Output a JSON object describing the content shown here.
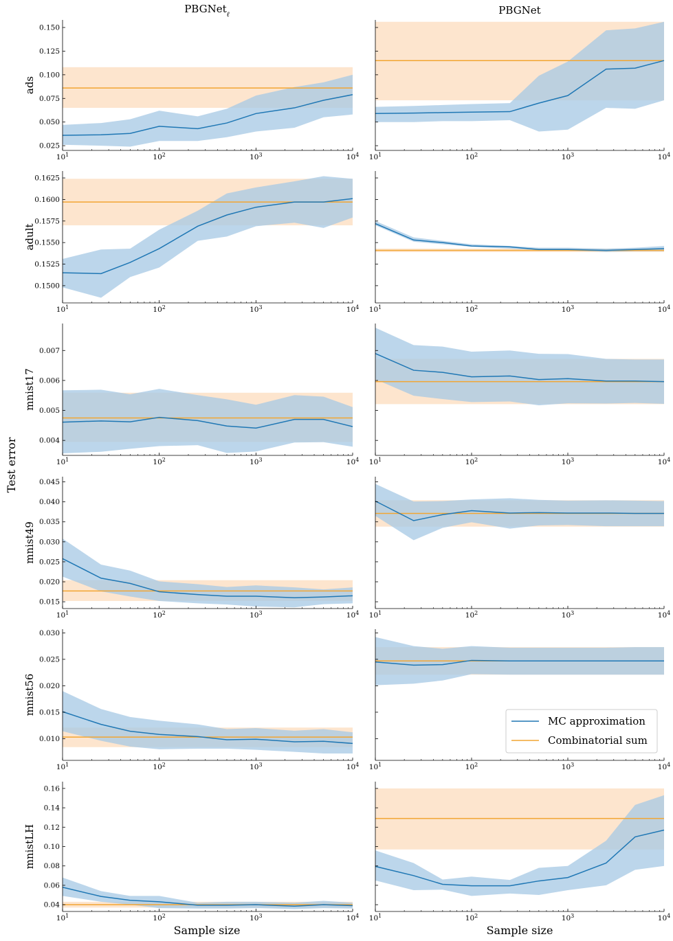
{
  "column_titles": [
    "PBGNetℓ",
    "PBGNet"
  ],
  "xlabel": "Sample size",
  "ylabel": "Test error",
  "legend": {
    "mc_label": "MC approximation",
    "comb_label": "Combinatorial sum",
    "placement": "lower-right (mnist56, PBGNet)"
  },
  "colors": {
    "mc_line": "#1f77b4",
    "mc_band": "#a6c8e4",
    "comb_line": "#f2a531",
    "comb_band": "#fde0c5"
  },
  "x_ticks": [
    "10^1",
    "10^2",
    "10^3",
    "10^4"
  ],
  "chart_data": {
    "type": "line",
    "x_scale": "log",
    "x": [
      10,
      25,
      50,
      100,
      250,
      500,
      1000,
      2500,
      5000,
      10000
    ],
    "xlim": [
      10,
      10000
    ],
    "rows": [
      {
        "dataset": "ads",
        "yticks": [
          "0.025",
          "0.050",
          "0.075",
          "0.100",
          "0.125",
          "0.150"
        ],
        "ylim": [
          0.02,
          0.158
        ],
        "panels": [
          {
            "column": "PBGNetℓ",
            "mc": [
              0.036,
              0.0365,
              0.038,
              0.0455,
              0.043,
              0.049,
              0.059,
              0.065,
              0.073,
              0.079
            ],
            "mc_low": [
              0.026,
              0.025,
              0.024,
              0.03,
              0.03,
              0.034,
              0.04,
              0.044,
              0.055,
              0.058
            ],
            "mc_high": [
              0.047,
              0.049,
              0.053,
              0.062,
              0.056,
              0.064,
              0.078,
              0.087,
              0.092,
              0.1
            ],
            "comb": 0.086,
            "comb_low": 0.065,
            "comb_high": 0.108
          },
          {
            "column": "PBGNet",
            "mc": [
              0.059,
              0.0595,
              0.06,
              0.0605,
              0.061,
              0.07,
              0.078,
              0.106,
              0.107,
              0.115
            ],
            "mc_low": [
              0.05,
              0.05,
              0.051,
              0.051,
              0.052,
              0.04,
              0.042,
              0.065,
              0.064,
              0.073
            ],
            "mc_high": [
              0.066,
              0.067,
              0.068,
              0.069,
              0.07,
              0.099,
              0.114,
              0.147,
              0.149,
              0.156
            ],
            "comb": 0.115,
            "comb_low": 0.073,
            "comb_high": 0.156
          }
        ]
      },
      {
        "dataset": "adult",
        "yticks": [
          "0.1500",
          "0.1525",
          "0.1550",
          "0.1575",
          "0.1600",
          "0.1625"
        ],
        "ylim": [
          0.148,
          0.1633
        ],
        "panels": [
          {
            "column": "PBGNetℓ",
            "mc": [
              0.1515,
              0.1514,
              0.1527,
              0.1543,
              0.1569,
              0.1582,
              0.1591,
              0.1597,
              0.1597,
              0.1601
            ],
            "mc_low": [
              0.1498,
              0.1486,
              0.151,
              0.1521,
              0.1552,
              0.1557,
              0.1569,
              0.1573,
              0.1567,
              0.1579
            ],
            "mc_high": [
              0.1531,
              0.1542,
              0.1543,
              0.1565,
              0.1587,
              0.1607,
              0.1614,
              0.1621,
              0.1627,
              0.1624
            ],
            "comb": 0.1597,
            "comb_low": 0.157,
            "comb_high": 0.1624
          },
          {
            "column": "PBGNet",
            "mc": [
              0.1572,
              0.1553,
              0.155,
              0.1546,
              0.1545,
              0.1542,
              0.1542,
              0.1541,
              0.1542,
              0.1543
            ],
            "mc_low": [
              0.157,
              0.1551,
              0.1548,
              0.1545,
              0.1543,
              0.1541,
              0.1541,
              0.1539,
              0.154,
              0.154
            ],
            "mc_high": [
              0.1575,
              0.1556,
              0.1552,
              0.1548,
              0.1546,
              0.1544,
              0.1544,
              0.1543,
              0.1544,
              0.1546
            ],
            "comb": 0.1541,
            "comb_low": 0.1539,
            "comb_high": 0.1543
          }
        ]
      },
      {
        "dataset": "mnist17",
        "yticks": [
          "0.004",
          "0.005",
          "0.006",
          "0.007"
        ],
        "ylim": [
          0.0035,
          0.0079
        ],
        "panels": [
          {
            "column": "PBGNetℓ",
            "mc": [
              0.00461,
              0.00465,
              0.00462,
              0.00477,
              0.00466,
              0.00448,
              0.00441,
              0.0047,
              0.0047,
              0.00446
            ],
            "mc_low": [
              0.00357,
              0.00362,
              0.00372,
              0.00381,
              0.00384,
              0.00358,
              0.00363,
              0.00393,
              0.00394,
              0.00379
            ],
            "mc_high": [
              0.00567,
              0.00569,
              0.00554,
              0.00572,
              0.00551,
              0.00537,
              0.00519,
              0.00551,
              0.00546,
              0.00511
            ],
            "comb": 0.00475,
            "comb_low": 0.00395,
            "comb_high": 0.00559
          },
          {
            "column": "PBGNet",
            "mc": [
              0.0069,
              0.00634,
              0.00627,
              0.00612,
              0.00615,
              0.00603,
              0.00606,
              0.00598,
              0.00598,
              0.00596
            ],
            "mc_low": [
              0.00604,
              0.00549,
              0.00538,
              0.00528,
              0.0053,
              0.00517,
              0.00524,
              0.00523,
              0.00525,
              0.00522
            ],
            "mc_high": [
              0.00776,
              0.00718,
              0.00713,
              0.00696,
              0.007,
              0.00689,
              0.00688,
              0.00672,
              0.0067,
              0.0067
            ],
            "comb": 0.00596,
            "comb_low": 0.00521,
            "comb_high": 0.00672
          }
        ]
      },
      {
        "dataset": "mnist49",
        "yticks": [
          "0.015",
          "0.020",
          "0.025",
          "0.030",
          "0.035",
          "0.040",
          "0.045"
        ],
        "ylim": [
          0.0133,
          0.0463
        ],
        "panels": [
          {
            "column": "PBGNetℓ",
            "mc": [
              0.0258,
              0.0209,
              0.0196,
              0.0175,
              0.0168,
              0.0164,
              0.0164,
              0.016,
              0.0162,
              0.0165
            ],
            "mc_low": [
              0.0213,
              0.0176,
              0.0163,
              0.0152,
              0.0146,
              0.0143,
              0.0138,
              0.0136,
              0.0144,
              0.0146
            ],
            "mc_high": [
              0.0308,
              0.0243,
              0.0228,
              0.0201,
              0.0194,
              0.0187,
              0.0191,
              0.0186,
              0.0181,
              0.0186
            ],
            "comb": 0.0177,
            "comb_low": 0.0152,
            "comb_high": 0.0204
          },
          {
            "column": "PBGNet",
            "mc": [
              0.0402,
              0.0353,
              0.0368,
              0.0378,
              0.0372,
              0.0373,
              0.0372,
              0.0372,
              0.0371,
              0.0371
            ],
            "mc_low": [
              0.0365,
              0.0304,
              0.0335,
              0.0349,
              0.0333,
              0.0341,
              0.0342,
              0.0339,
              0.0339,
              0.0339
            ],
            "mc_high": [
              0.0445,
              0.0401,
              0.0402,
              0.0406,
              0.0409,
              0.0405,
              0.0403,
              0.0404,
              0.0403,
              0.0402
            ],
            "comb": 0.0371,
            "comb_low": 0.0338,
            "comb_high": 0.0404
          }
        ]
      },
      {
        "dataset": "mnist56",
        "yticks": [
          "0.010",
          "0.015",
          "0.020",
          "0.025",
          "0.030"
        ],
        "ylim": [
          0.0059,
          0.0307
        ],
        "panels": [
          {
            "column": "PBGNetℓ",
            "mc": [
              0.0151,
              0.0127,
              0.0114,
              0.0108,
              0.0104,
              0.0098,
              0.0099,
              0.0094,
              0.0095,
              0.0091
            ],
            "mc_low": [
              0.0114,
              0.0096,
              0.0085,
              0.008,
              0.0081,
              0.0081,
              0.0079,
              0.0075,
              0.0072,
              0.0072
            ],
            "mc_high": [
              0.019,
              0.0156,
              0.0141,
              0.0134,
              0.0127,
              0.0118,
              0.012,
              0.0115,
              0.0118,
              0.0112
            ],
            "comb": 0.0103,
            "comb_low": 0.0084,
            "comb_high": 0.0121
          },
          {
            "column": "PBGNet",
            "mc": [
              0.0245,
              0.0239,
              0.024,
              0.0248,
              0.0247,
              0.0247,
              0.0247,
              0.0247,
              0.0247,
              0.0247
            ],
            "mc_low": [
              0.0201,
              0.0204,
              0.021,
              0.0222,
              0.0221,
              0.0221,
              0.0221,
              0.0221,
              0.0221,
              0.0221
            ],
            "mc_high": [
              0.0292,
              0.0275,
              0.027,
              0.0275,
              0.0272,
              0.0272,
              0.0272,
              0.0272,
              0.0273,
              0.0273
            ],
            "comb": 0.0247,
            "comb_low": 0.0221,
            "comb_high": 0.0273
          }
        ]
      },
      {
        "dataset": "mnistLH",
        "yticks": [
          "0.04",
          "0.06",
          "0.08",
          "0.10",
          "0.12",
          "0.14",
          "0.16"
        ],
        "ylim": [
          0.033,
          0.167
        ],
        "panels": [
          {
            "column": "PBGNetℓ",
            "mc": [
              0.058,
              0.0485,
              0.0445,
              0.043,
              0.0395,
              0.0395,
              0.04,
              0.0385,
              0.04,
              0.039
            ],
            "mc_low": [
              0.049,
              0.043,
              0.04,
              0.0365,
              0.036,
              0.036,
              0.0365,
              0.0355,
              0.0365,
              0.036
            ],
            "mc_high": [
              0.068,
              0.054,
              0.049,
              0.049,
              0.042,
              0.043,
              0.043,
              0.042,
              0.044,
              0.042
            ],
            "comb": 0.04,
            "comb_low": 0.037,
            "comb_high": 0.043
          },
          {
            "column": "PBGNet",
            "mc": [
              0.0795,
              0.07,
              0.061,
              0.0595,
              0.0595,
              0.0645,
              0.068,
              0.083,
              0.11,
              0.117
            ],
            "mc_low": [
              0.065,
              0.055,
              0.0555,
              0.049,
              0.0515,
              0.05,
              0.055,
              0.06,
              0.076,
              0.08
            ],
            "mc_high": [
              0.096,
              0.083,
              0.066,
              0.069,
              0.0655,
              0.078,
              0.08,
              0.106,
              0.143,
              0.153
            ],
            "comb": 0.129,
            "comb_low": 0.097,
            "comb_high": 0.16
          }
        ]
      }
    ]
  }
}
